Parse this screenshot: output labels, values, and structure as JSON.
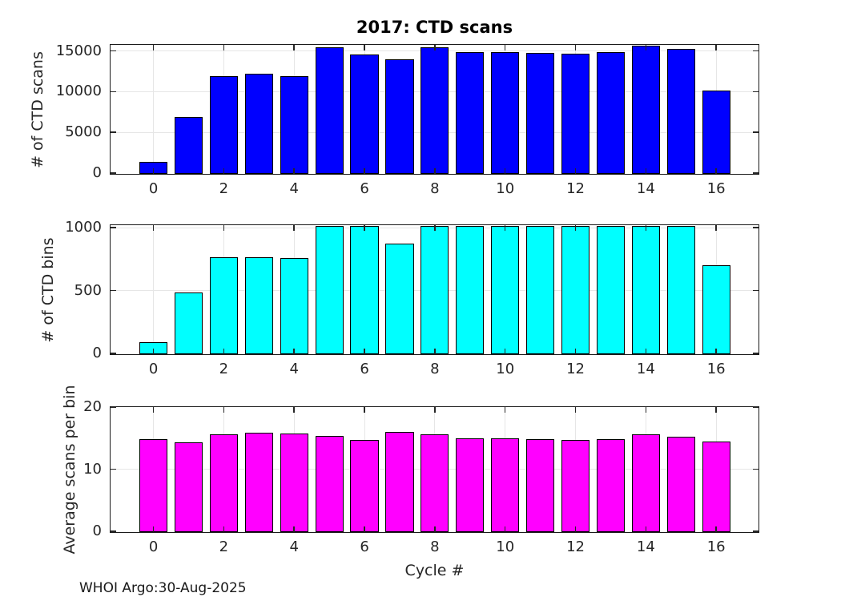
{
  "title": "2017: CTD scans",
  "xlabel": "Cycle #",
  "footer": "WHOI Argo:30-Aug-2025",
  "chart_data": [
    {
      "type": "bar",
      "name": "ctd-scans",
      "title": "2017: CTD scans",
      "ylabel": "# of CTD scans",
      "bar_color": "#0000FF",
      "edge_color": "#000000",
      "categories": [
        0,
        1,
        2,
        3,
        4,
        5,
        6,
        7,
        8,
        9,
        10,
        11,
        12,
        13,
        14,
        15,
        16
      ],
      "values": [
        1450,
        7000,
        12050,
        12300,
        12050,
        15550,
        14650,
        14050,
        15550,
        14950,
        14950,
        14850,
        14750,
        15000,
        15750,
        15400,
        10250
      ],
      "ylim": [
        0,
        15750
      ],
      "yticks": [
        0,
        5000,
        10000,
        15000
      ],
      "xticks": [
        0,
        2,
        4,
        6,
        8,
        10,
        12,
        14,
        16
      ],
      "xlim": [
        -1.22,
        17.18
      ],
      "grid": true,
      "legend": false
    },
    {
      "type": "bar",
      "name": "ctd-bins",
      "title": "",
      "ylabel": "# of CTD bins",
      "bar_color": "#00FFFF",
      "edge_color": "#000000",
      "categories": [
        0,
        1,
        2,
        3,
        4,
        5,
        6,
        7,
        8,
        9,
        10,
        11,
        12,
        13,
        14,
        15,
        16
      ],
      "values": [
        97,
        494,
        773,
        773,
        767,
        1020,
        1020,
        879,
        1020,
        1020,
        1020,
        1020,
        1020,
        1020,
        1020,
        1020,
        710
      ],
      "ylim": [
        0,
        1020
      ],
      "yticks": [
        0,
        500,
        1000
      ],
      "xticks": [
        0,
        2,
        4,
        6,
        8,
        10,
        12,
        14,
        16
      ],
      "xlim": [
        -1.22,
        17.18
      ],
      "grid": true,
      "legend": false
    },
    {
      "type": "bar",
      "name": "avg-scans-per-bin",
      "title": "",
      "ylabel": "Average scans per bin",
      "xlabel": "Cycle #",
      "bar_color": "#FF00FF",
      "edge_color": "#000000",
      "categories": [
        0,
        1,
        2,
        3,
        4,
        5,
        6,
        7,
        8,
        9,
        10,
        11,
        12,
        13,
        14,
        15,
        16
      ],
      "values": [
        15.0,
        14.5,
        15.7,
        16.0,
        15.9,
        15.5,
        14.8,
        16.1,
        15.7,
        15.1,
        15.1,
        15.0,
        14.9,
        15.0,
        15.8,
        15.4,
        14.6
      ],
      "ylim": [
        0,
        20
      ],
      "yticks": [
        0,
        10,
        20
      ],
      "xticks": [
        0,
        2,
        4,
        6,
        8,
        10,
        12,
        14,
        16
      ],
      "xlim": [
        -1.22,
        17.18
      ],
      "grid": true,
      "legend": false
    }
  ]
}
